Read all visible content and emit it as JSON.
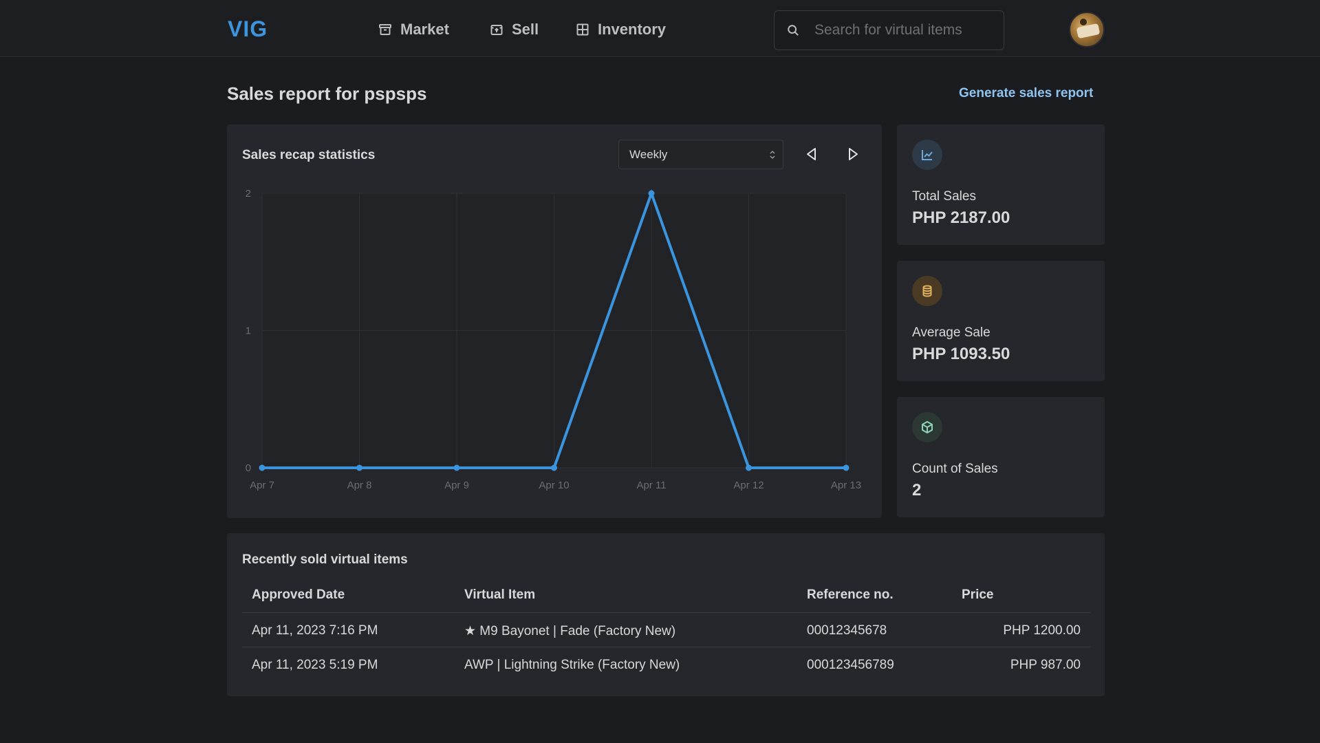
{
  "nav": {
    "logo": "VIG",
    "links": [
      {
        "label": "Market",
        "icon": "archive-icon"
      },
      {
        "label": "Sell",
        "icon": "upload-box-icon"
      },
      {
        "label": "Inventory",
        "icon": "grid-icon"
      }
    ],
    "search_placeholder": "Search for virtual items"
  },
  "page": {
    "title": "Sales report for pspsps",
    "generate_report": "Generate sales report"
  },
  "chart_card": {
    "title": "Sales recap statistics",
    "period": "Weekly"
  },
  "chart_data": {
    "type": "line",
    "x": [
      "Apr 7",
      "Apr 8",
      "Apr 9",
      "Apr 10",
      "Apr 11",
      "Apr 12",
      "Apr 13"
    ],
    "series": [
      {
        "values": [
          0,
          0,
          0,
          0,
          2,
          0,
          0
        ],
        "color": "#3b94de"
      }
    ],
    "yticks": [
      "0",
      "1",
      "2"
    ],
    "ylim": [
      0,
      2
    ],
    "grid": true
  },
  "stats": [
    {
      "label": "Total Sales",
      "value": "PHP 2187.00",
      "icon": "line-chart-icon",
      "icon_color": "#6fa9d8",
      "icon_bg": "#2d3a47"
    },
    {
      "label": "Average Sale",
      "value": "PHP 1093.50",
      "icon": "coins-icon",
      "icon_color": "#e2b15d",
      "icon_bg": "#4a3a24"
    },
    {
      "label": "Count of Sales",
      "value": "2",
      "icon": "box-icon",
      "icon_color": "#8ed4b8",
      "icon_bg": "#2b3833"
    }
  ],
  "table": {
    "title": "Recently sold virtual items",
    "headers": [
      "Approved Date",
      "Virtual Item",
      "Reference no.",
      "Price"
    ],
    "rows": [
      {
        "date": "Apr 11, 2023 7:16 PM",
        "item": "★ M9 Bayonet | Fade (Factory New)",
        "ref": "00012345678",
        "price": "PHP 1200.00"
      },
      {
        "date": "Apr 11, 2023 5:19 PM",
        "item": "AWP | Lightning Strike (Factory New)",
        "ref": "000123456789",
        "price": "PHP 987.00"
      }
    ]
  }
}
